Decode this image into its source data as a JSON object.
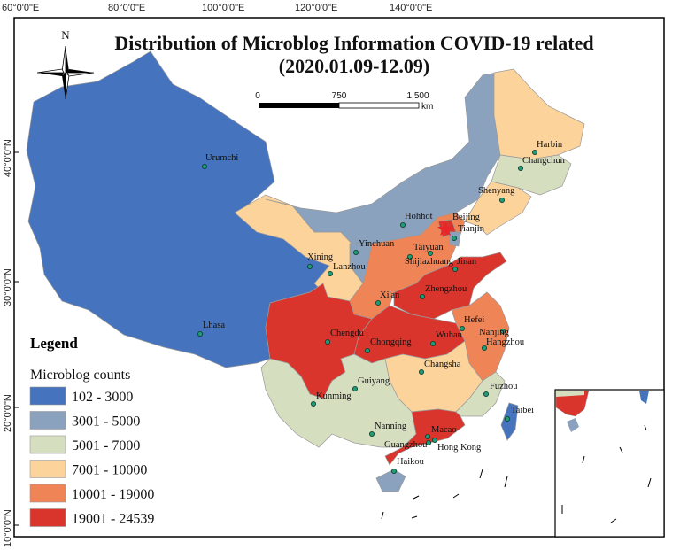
{
  "title": "Distribution of Microblog Information COVID-19 related",
  "subtitle": "(2020.01.09-12.09)",
  "compass": {
    "north_label": "N"
  },
  "scale_bar": {
    "labels": [
      "0",
      "750",
      "1,500"
    ],
    "unit": "km"
  },
  "axes": {
    "longitude": [
      "60°0'0\"E",
      "80°0'0\"E",
      "100°0'0\"E",
      "120°0'0\"E",
      "140°0'0\"E"
    ],
    "latitude": [
      "40°0'0\"N",
      "30°0'0\"N",
      "20°0'0\"N",
      "10°0'0\"N"
    ]
  },
  "legend": {
    "heading": "Legend",
    "subheading": "Microblog counts",
    "classes": [
      {
        "label": "102 - 3000",
        "color": "#4573bd"
      },
      {
        "label": "3001 - 5000",
        "color": "#8ba2be"
      },
      {
        "label": "5001 - 7000",
        "color": "#d6dec0"
      },
      {
        "label": "7001 - 10000",
        "color": "#fcd39b"
      },
      {
        "label": "10001 - 19000",
        "color": "#ef8457"
      },
      {
        "label": "19001 - 24539",
        "color": "#d9352d"
      }
    ]
  },
  "cities": [
    {
      "name": "Urumchi"
    },
    {
      "name": "Harbin"
    },
    {
      "name": "Changchun"
    },
    {
      "name": "Shenyang"
    },
    {
      "name": "Hohhot"
    },
    {
      "name": "Beijing"
    },
    {
      "name": "Tianjin"
    },
    {
      "name": "Yinchuan"
    },
    {
      "name": "Taiyuan"
    },
    {
      "name": "Shijiazhuang"
    },
    {
      "name": "Jinan"
    },
    {
      "name": "Xining"
    },
    {
      "name": "Lanzhou"
    },
    {
      "name": "Zhengzhou"
    },
    {
      "name": "Xi'an"
    },
    {
      "name": "Lhasa"
    },
    {
      "name": "Chengdu"
    },
    {
      "name": "Chongqing"
    },
    {
      "name": "Wuhan"
    },
    {
      "name": "Hefei"
    },
    {
      "name": "Nanjing"
    },
    {
      "name": "Hangzhou"
    },
    {
      "name": "Changsha"
    },
    {
      "name": "Guiyang"
    },
    {
      "name": "Kunming"
    },
    {
      "name": "Fuzhou"
    },
    {
      "name": "Taibei"
    },
    {
      "name": "Nanning"
    },
    {
      "name": "Macao"
    },
    {
      "name": "Guangzhou"
    },
    {
      "name": "Hong Kong"
    },
    {
      "name": "Haikou"
    }
  ]
}
